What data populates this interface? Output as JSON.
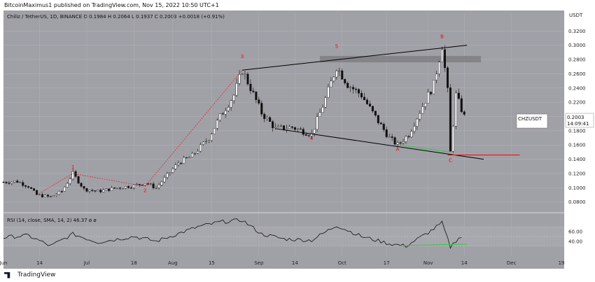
{
  "header": {
    "text": "BitcoinMaximus1 published on TradingView.com, Nov 15, 2022 10:50 UTC+1"
  },
  "legend": {
    "text": "Chiliz / TetherUS, 1D, BINANCE  O 0.1984  H 0.2064  L 0.1937  C 0.2003  +0.0018 (+0.91%)"
  },
  "footer": {
    "brand": "TradingView"
  },
  "price_tag": {
    "price": "0.2003",
    "countdown": "14:09:41",
    "symbol": "CHZUSDT"
  },
  "rsi_tag": {
    "label": "RSI (14, close, SMA, 14, 2)",
    "value": "46.37",
    "extra": "ø  ø"
  },
  "colors": {
    "accent_red": "#ff0000",
    "rsi_divergence": "#2ecc40",
    "pattern_line": "#000000"
  },
  "chart_data": {
    "type": "candlestick",
    "symbol": "CHZUSDT",
    "title": "Chiliz / TetherUS, 1D, BINANCE",
    "y_unit": "USDT",
    "ylim": [
      0.066,
      0.334
    ],
    "y_ticks": [
      "0.3200",
      "0.3000",
      "0.2800",
      "0.2600",
      "0.2400",
      "0.2200",
      "0.2000",
      "0.1800",
      "0.1600",
      "0.1400",
      "0.1200",
      "0.1000",
      "0.0800"
    ],
    "x_ticks": [
      "Jun",
      "14",
      "Jul",
      "18",
      "Aug",
      "15",
      "Sep",
      "14",
      "Oct",
      "17",
      "Nov",
      "14",
      "Dec",
      "19"
    ],
    "price_path": [
      [
        "2022-06-01",
        0.108
      ],
      [
        "2022-06-06",
        0.109
      ],
      [
        "2022-06-10",
        0.102
      ],
      [
        "2022-06-13",
        0.09
      ],
      [
        "2022-06-18",
        0.087
      ],
      [
        "2022-06-22",
        0.095
      ],
      [
        "2022-06-26",
        0.12
      ],
      [
        "2022-06-30",
        0.098
      ],
      [
        "2022-07-05",
        0.095
      ],
      [
        "2022-07-12",
        0.1
      ],
      [
        "2022-07-18",
        0.103
      ],
      [
        "2022-07-22",
        0.107
      ],
      [
        "2022-07-26",
        0.1
      ],
      [
        "2022-07-29",
        0.113
      ],
      [
        "2022-08-03",
        0.135
      ],
      [
        "2022-08-08",
        0.145
      ],
      [
        "2022-08-14",
        0.17
      ],
      [
        "2022-08-18",
        0.2
      ],
      [
        "2022-08-23",
        0.23
      ],
      [
        "2022-08-26",
        0.265
      ],
      [
        "2022-08-29",
        0.24
      ],
      [
        "2022-09-02",
        0.205
      ],
      [
        "2022-09-07",
        0.183
      ],
      [
        "2022-09-13",
        0.185
      ],
      [
        "2022-09-20",
        0.175
      ],
      [
        "2022-09-25",
        0.225
      ],
      [
        "2022-09-29",
        0.27
      ],
      [
        "2022-10-03",
        0.245
      ],
      [
        "2022-10-08",
        0.23
      ],
      [
        "2022-10-14",
        0.193
      ],
      [
        "2022-10-18",
        0.17
      ],
      [
        "2022-10-21",
        0.16
      ],
      [
        "2022-10-25",
        0.175
      ],
      [
        "2022-10-30",
        0.215
      ],
      [
        "2022-11-03",
        0.245
      ],
      [
        "2022-11-06",
        0.3
      ],
      [
        "2022-11-08",
        0.235
      ],
      [
        "2022-11-09",
        0.15
      ],
      [
        "2022-11-11",
        0.23
      ],
      [
        "2022-11-14",
        0.2
      ]
    ],
    "wave_labels": [
      {
        "label": "1",
        "date": "2022-06-26",
        "price": 0.127
      },
      {
        "label": "2",
        "date": "2022-07-22",
        "price": 0.094
      },
      {
        "label": "3",
        "date": "2022-08-26",
        "price": 0.282
      },
      {
        "label": "4",
        "date": "2022-09-20",
        "price": 0.167
      },
      {
        "label": "5",
        "date": "2022-09-29",
        "price": 0.296
      },
      {
        "label": "A",
        "date": "2022-10-21",
        "price": 0.152
      },
      {
        "label": "B",
        "date": "2022-11-06",
        "price": 0.31
      },
      {
        "label": "C",
        "date": "2022-11-09",
        "price": 0.136
      }
    ],
    "trendlines": [
      {
        "name": "upper-resistance",
        "from": [
          "2022-08-26",
          0.265
        ],
        "to": [
          "2022-11-15",
          0.3
        ]
      },
      {
        "name": "lower-support",
        "from": [
          "2022-09-07",
          0.183
        ],
        "to": [
          "2022-11-21",
          0.14
        ]
      },
      {
        "name": "horizontal-support",
        "from": [
          "2022-11-08",
          0.146
        ],
        "to": [
          "2022-12-04",
          0.146
        ]
      }
    ],
    "resistance_zone": {
      "from": "2022-09-23",
      "to": "2022-11-20",
      "low": 0.276,
      "high": 0.285
    },
    "rsi": {
      "label": "RSI (14, close, SMA, 14, 2)",
      "value": 46.37,
      "y_ticks": [
        "60.00",
        "40.00"
      ],
      "bands": [
        70,
        50,
        30
      ],
      "ylim": [
        15,
        95
      ],
      "path": [
        [
          "2022-06-01",
          48
        ],
        [
          "2022-06-10",
          52
        ],
        [
          "2022-06-18",
          30
        ],
        [
          "2022-06-26",
          55
        ],
        [
          "2022-07-05",
          38
        ],
        [
          "2022-07-18",
          50
        ],
        [
          "2022-07-26",
          40
        ],
        [
          "2022-08-10",
          70
        ],
        [
          "2022-08-18",
          80
        ],
        [
          "2022-08-26",
          84
        ],
        [
          "2022-09-02",
          55
        ],
        [
          "2022-09-10",
          45
        ],
        [
          "2022-09-20",
          42
        ],
        [
          "2022-09-29",
          73
        ],
        [
          "2022-10-08",
          50
        ],
        [
          "2022-10-18",
          35
        ],
        [
          "2022-10-24",
          30
        ],
        [
          "2022-11-01",
          58
        ],
        [
          "2022-11-06",
          78
        ],
        [
          "2022-11-09",
          28
        ],
        [
          "2022-11-12",
          48
        ],
        [
          "2022-11-14",
          46
        ]
      ],
      "divergence": {
        "from": [
          "2022-10-22",
          31
        ],
        "to": [
          "2022-11-15",
          34
        ]
      }
    }
  }
}
